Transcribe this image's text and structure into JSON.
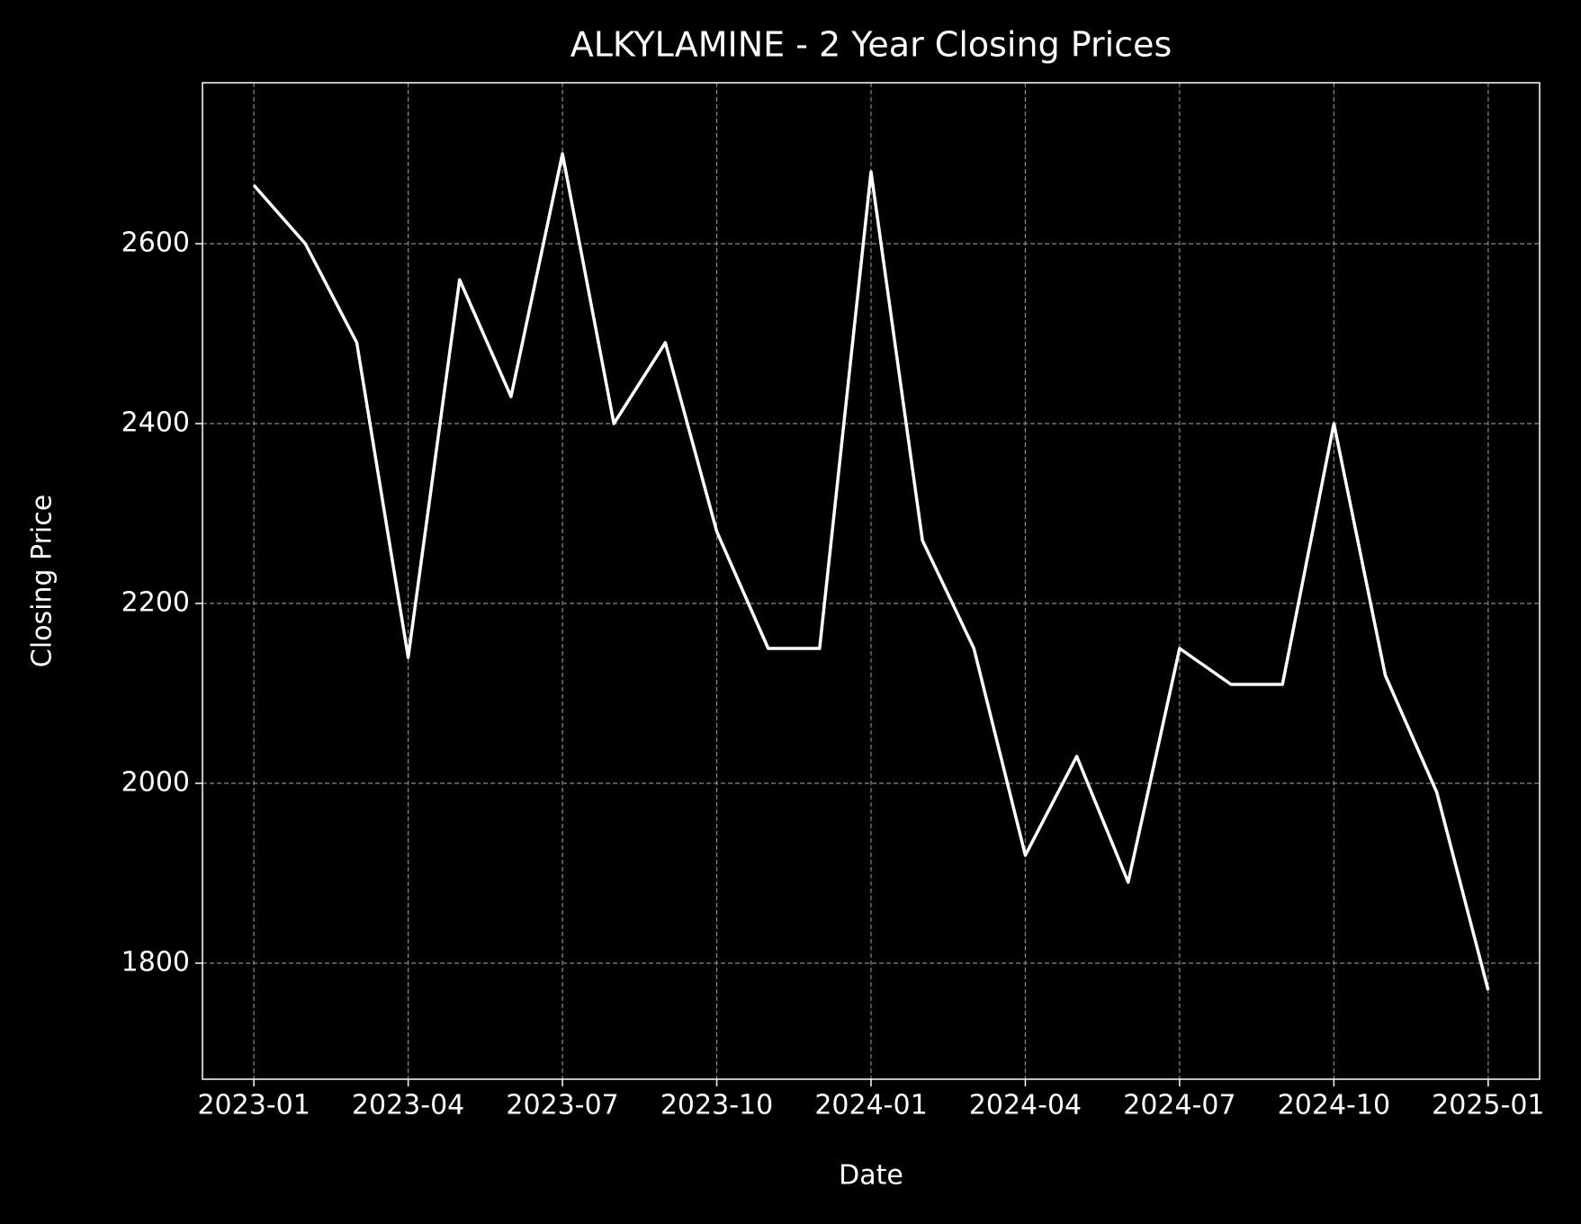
{
  "chart_data": {
    "type": "line",
    "title": "ALKYLAMINE - 2 Year Closing Prices",
    "x_label": "Date",
    "y_label": "Closing Price",
    "x": [
      "2023-01",
      "2023-02",
      "2023-03",
      "2023-04",
      "2023-05",
      "2023-06",
      "2023-07",
      "2023-08",
      "2023-09",
      "2023-10",
      "2023-11",
      "2023-12",
      "2024-01",
      "2024-02",
      "2024-03",
      "2024-04",
      "2024-05",
      "2024-06",
      "2024-07",
      "2024-08",
      "2024-09",
      "2024-10",
      "2024-11",
      "2024-12",
      "2025-01"
    ],
    "series": [
      {
        "name": "Close",
        "color": "#ffffff",
        "values": [
          2665,
          2600,
          2490,
          2140,
          2560,
          2430,
          2700,
          2400,
          2490,
          2280,
          2150,
          2150,
          2680,
          2270,
          2150,
          1920,
          2030,
          1890,
          2150,
          2110,
          2110,
          2400,
          2120,
          1990,
          1770
        ]
      }
    ],
    "xlim": [
      "2022-12",
      "2025-02"
    ],
    "xticks": [
      "2023-01",
      "2023-04",
      "2023-07",
      "2023-10",
      "2024-01",
      "2024-04",
      "2024-07",
      "2024-10",
      "2025-01"
    ],
    "ylim": [
      1671,
      2779
    ],
    "yticks": [
      1800,
      2000,
      2200,
      2400,
      2600
    ],
    "grid": true
  }
}
